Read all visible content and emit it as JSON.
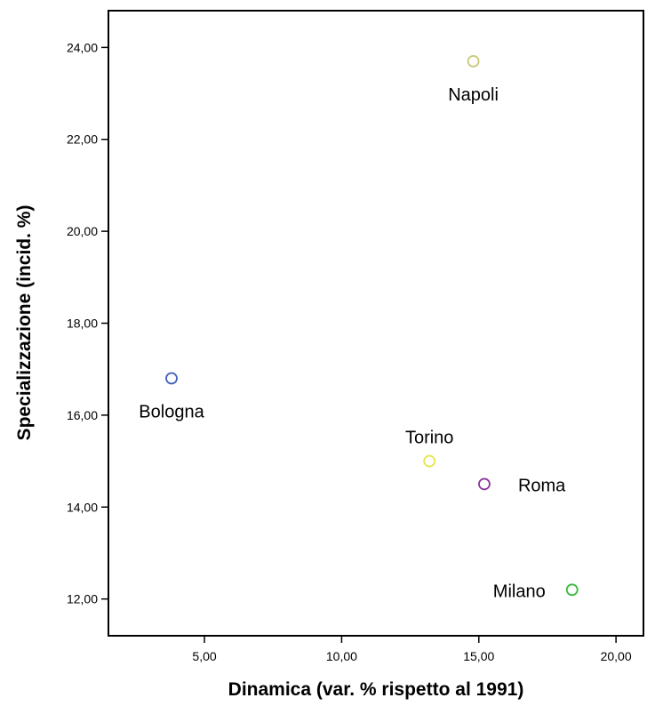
{
  "chart_data": {
    "type": "scatter",
    "xlabel": "Dinamica (var. % rispetto al 1991)",
    "ylabel": "Specializzazione (incid. %)",
    "xlim": [
      1.5,
      21.0
    ],
    "ylim": [
      11.2,
      24.8
    ],
    "xticks": [
      5,
      10,
      15,
      20
    ],
    "xtick_labels": [
      "5,00",
      "10,00",
      "15,00",
      "20,00"
    ],
    "yticks": [
      12,
      14,
      16,
      18,
      20,
      22,
      24
    ],
    "ytick_labels": [
      "12,00",
      "14,00",
      "16,00",
      "18,00",
      "20,00",
      "22,00",
      "24,00"
    ],
    "grid": false,
    "points": [
      {
        "label": "Napoli",
        "x": 14.8,
        "y": 23.7,
        "color": "#c8c878",
        "label_pos": "below"
      },
      {
        "label": "Bologna",
        "x": 3.8,
        "y": 16.8,
        "color": "#3f5fbf",
        "label_pos": "below"
      },
      {
        "label": "Torino",
        "x": 13.2,
        "y": 15.0,
        "color": "#e6e650",
        "label_pos": "above"
      },
      {
        "label": "Roma",
        "x": 15.2,
        "y": 14.5,
        "color": "#8a3a9a",
        "label_pos": "right"
      },
      {
        "label": "Milano",
        "x": 18.4,
        "y": 12.2,
        "color": "#3cb83c",
        "label_pos": "left"
      }
    ]
  }
}
